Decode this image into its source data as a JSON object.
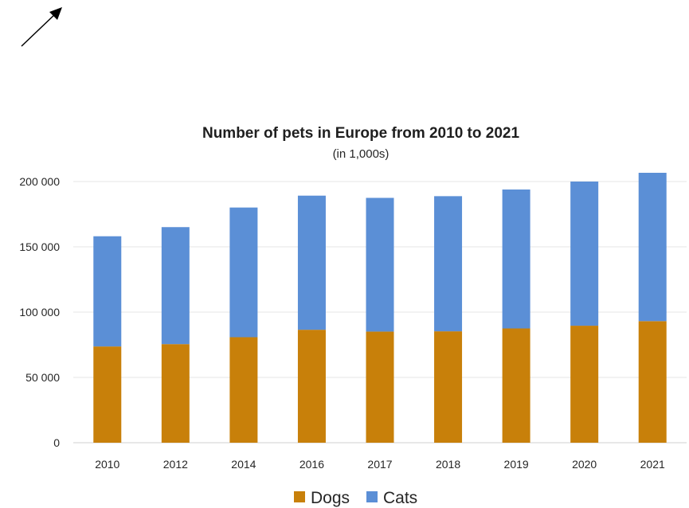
{
  "colors": {
    "dogs": "#c8800a",
    "cats": "#5b8fd6",
    "arrow": "#000000"
  },
  "icons": {
    "arrow": "diagonal-arrow-icon"
  },
  "chart_data": {
    "type": "bar",
    "stacked": true,
    "title": "Number of pets in Europe from 2010 to 2021",
    "subtitle": "(in 1,000s)",
    "xlabel": "",
    "ylabel": "",
    "categories": [
      "2010",
      "2012",
      "2014",
      "2016",
      "2017",
      "2018",
      "2019",
      "2020",
      "2021"
    ],
    "series": [
      {
        "name": "Dogs",
        "values": [
          73700,
          75500,
          80800,
          86500,
          85100,
          85300,
          87500,
          89600,
          93100
        ]
      },
      {
        "name": "Cats",
        "values": [
          84400,
          89600,
          99300,
          102700,
          102400,
          103500,
          106400,
          110400,
          113600
        ]
      }
    ],
    "ylim": [
      0,
      200000
    ],
    "yticks": [
      0,
      50000,
      100000,
      150000,
      200000
    ],
    "ytick_labels": [
      "0",
      "50 000",
      "100 000",
      "150 000",
      "200 000"
    ],
    "grid": true,
    "legend": "bottom"
  }
}
